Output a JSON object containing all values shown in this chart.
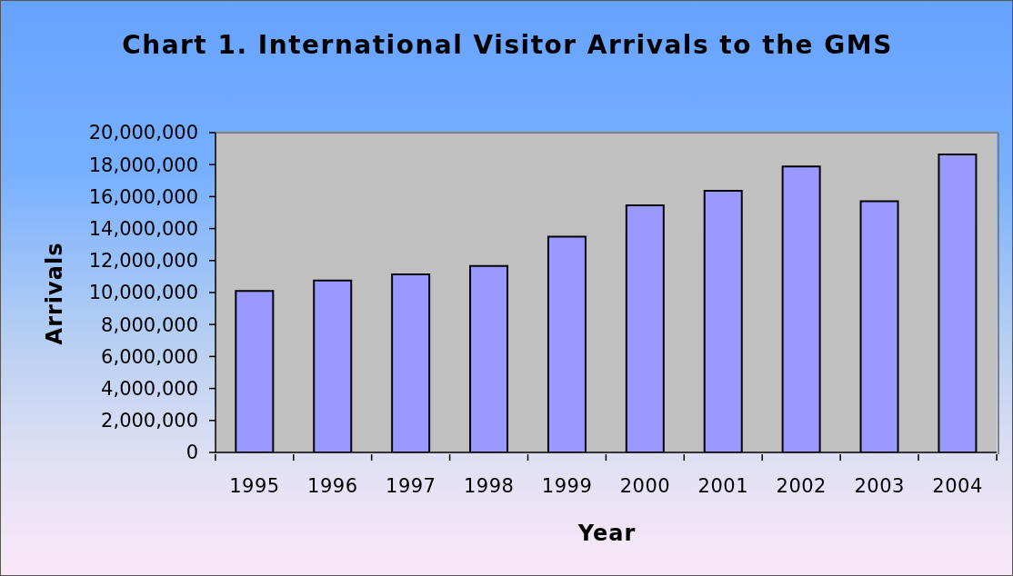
{
  "chart_data": {
    "type": "bar",
    "title": "Chart 1. International Visitor Arrivals to the GMS",
    "xlabel": "Year",
    "ylabel": "Arrivals",
    "categories": [
      "1995",
      "1996",
      "1997",
      "1998",
      "1999",
      "2000",
      "2001",
      "2002",
      "2003",
      "2004"
    ],
    "values": [
      10100000,
      10750000,
      11130000,
      11660000,
      13490000,
      15460000,
      16370000,
      17890000,
      15710000,
      18640000
    ],
    "color": "#9999ff",
    "ylim": [
      0,
      20000000
    ],
    "yticks": [
      0,
      {
        "value": 2000000,
        "label": "2,000,000"
      },
      {
        "value": 4000000,
        "label": "4,000,000"
      },
      {
        "value": 6000000,
        "label": "6,000,000"
      },
      {
        "value": 8000000,
        "label": "8,000,000"
      },
      {
        "value": 10000000,
        "label": "10,000,000"
      },
      {
        "value": 12000000,
        "label": "12,000,000"
      },
      {
        "value": 14000000,
        "label": "14,000,000"
      },
      {
        "value": 16000000,
        "label": "16,000,000"
      },
      {
        "value": 18000000,
        "label": "18,000,000"
      },
      {
        "value": 20000000,
        "label": "20,000,000"
      }
    ],
    "grid": false
  }
}
